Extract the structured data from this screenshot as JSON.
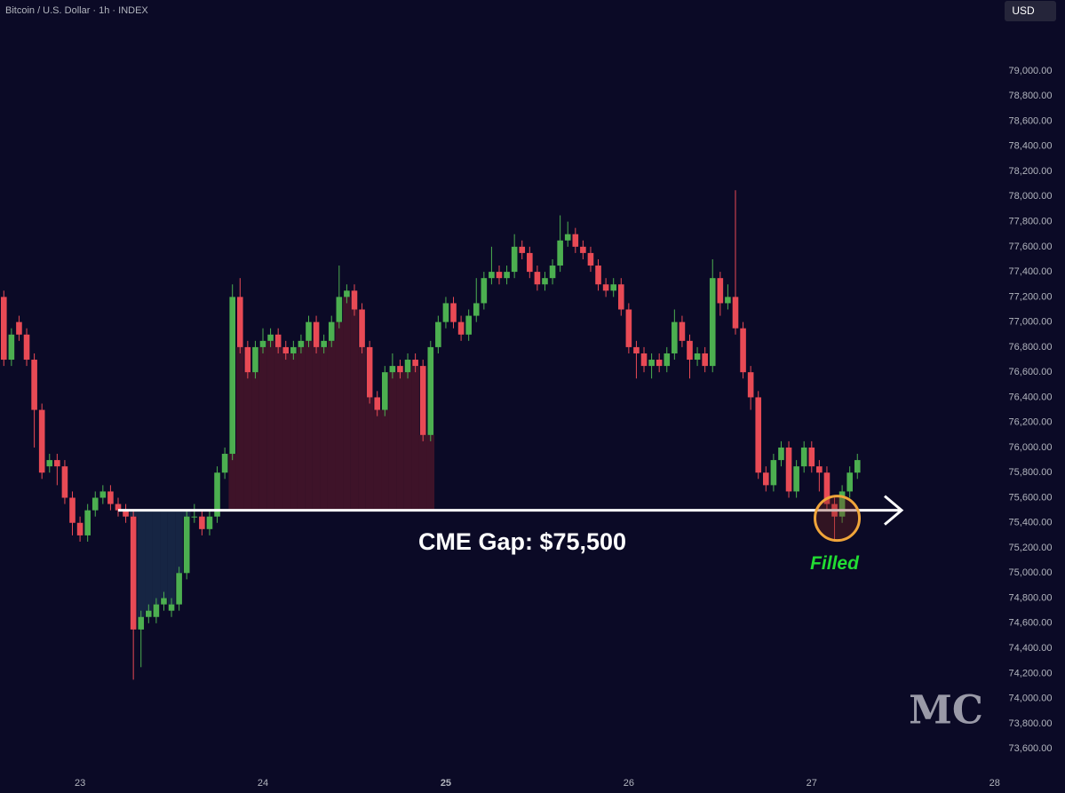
{
  "chart_data": {
    "type": "candlestick",
    "title": "Bitcoin / U.S. Dollar · 1h · INDEX",
    "currency": "USD",
    "logo": "MC",
    "up_color": "#4caf50",
    "down_color": "#e84a55",
    "categories": [
      null,
      null,
      null,
      null,
      null,
      null,
      null,
      null,
      null,
      null,
      "23",
      null,
      null,
      null,
      null,
      null,
      null,
      null,
      null,
      null,
      null,
      null,
      null,
      null,
      null,
      null,
      null,
      null,
      null,
      null,
      null,
      null,
      null,
      null,
      "24",
      null,
      null,
      null,
      null,
      null,
      null,
      null,
      null,
      null,
      null,
      null,
      null,
      null,
      null,
      null,
      null,
      null,
      null,
      null,
      null,
      null,
      null,
      null,
      "25",
      null,
      null,
      null,
      null,
      null,
      null,
      null,
      null,
      null,
      null,
      null,
      null,
      null,
      null,
      null,
      null,
      null,
      null,
      null,
      null,
      null,
      null,
      null,
      "26",
      null,
      null,
      null,
      null,
      null,
      null,
      null,
      null,
      null,
      null,
      null,
      null,
      null,
      null,
      null,
      null,
      null,
      null,
      null,
      null,
      null,
      null,
      null,
      "27",
      null,
      null,
      null,
      null,
      null,
      null,
      null,
      null,
      null,
      null,
      null,
      null,
      null,
      null,
      null,
      null,
      null,
      null,
      null,
      null,
      null,
      null,
      null,
      "28"
    ],
    "open": [
      77200,
      76700,
      77000,
      76900,
      76700,
      76300,
      75850,
      75900,
      75850,
      75600,
      75400,
      75300,
      75500,
      75600,
      75650,
      75550,
      75500,
      75450,
      74550,
      74650,
      74650,
      74750,
      74700,
      74750,
      75000,
      75450,
      75450,
      75350,
      75450,
      75800,
      75950,
      77200,
      76800,
      76600,
      76800,
      76850,
      76900,
      76800,
      76750,
      76800,
      76850,
      77000,
      76800,
      76850,
      77000,
      77200,
      77250,
      77100,
      76800,
      76400,
      76300,
      76600,
      76650,
      76600,
      76700,
      76650,
      76100,
      76800,
      77000,
      77150,
      77000,
      76900,
      77050,
      77150,
      77350,
      77400,
      77350,
      77400,
      77600,
      77550,
      77400,
      77300,
      77350,
      77450,
      77650,
      77700,
      77600,
      77550,
      77450,
      77300,
      77250,
      77300,
      77100,
      76800,
      76750,
      76650,
      76700,
      76650,
      76750,
      77000,
      76850,
      76700,
      76750,
      76650,
      77350,
      77150,
      77200,
      76950,
      76600,
      76400,
      75800,
      75700,
      75900,
      76000,
      75650,
      75850,
      76000,
      75850,
      75800,
      75550,
      75450,
      75650,
      75800,
      null,
      null,
      null,
      null,
      null,
      null,
      null,
      null,
      null,
      null,
      null,
      null,
      null,
      null,
      null,
      null,
      null,
      null
    ],
    "high": [
      77250,
      76950,
      77050,
      76950,
      76750,
      76350,
      75950,
      75950,
      75900,
      75650,
      75450,
      75550,
      75650,
      75700,
      75700,
      75600,
      75550,
      75500,
      74700,
      74750,
      74800,
      74850,
      74800,
      75050,
      75500,
      75550,
      75500,
      75500,
      75850,
      76000,
      77300,
      77350,
      76850,
      76850,
      76950,
      76950,
      76950,
      76850,
      76850,
      76900,
      77050,
      77050,
      76900,
      77050,
      77450,
      77300,
      77300,
      77150,
      76850,
      76450,
      76650,
      76750,
      76700,
      76750,
      76750,
      76700,
      76850,
      77050,
      77200,
      77200,
      77050,
      77100,
      77350,
      77400,
      77600,
      77450,
      77450,
      77700,
      77650,
      77600,
      77450,
      77400,
      77500,
      77850,
      77800,
      77750,
      77650,
      77600,
      77500,
      77350,
      77350,
      77350,
      77150,
      76850,
      76800,
      76750,
      76750,
      76800,
      77100,
      77050,
      76900,
      76800,
      76800,
      77500,
      77400,
      77300,
      78050,
      77000,
      76650,
      76450,
      75850,
      75950,
      76050,
      76050,
      75900,
      76050,
      76050,
      75900,
      75850,
      75600,
      75700,
      75850,
      75950,
      null,
      null,
      null,
      null,
      null,
      null,
      null,
      null,
      null,
      null,
      null,
      null,
      null,
      null,
      null,
      null,
      null,
      null
    ],
    "low": [
      76650,
      76650,
      76850,
      76650,
      76000,
      75750,
      75800,
      75700,
      75550,
      75300,
      75250,
      75250,
      75450,
      75550,
      75500,
      75450,
      75400,
      74150,
      74250,
      74600,
      74600,
      74700,
      74650,
      74700,
      74950,
      75400,
      75300,
      75300,
      75400,
      75750,
      75900,
      76750,
      76550,
      76550,
      76750,
      76800,
      76750,
      76700,
      76700,
      76750,
      76800,
      76750,
      76750,
      76800,
      76950,
      77150,
      77050,
      76750,
      76350,
      76250,
      76250,
      76550,
      76550,
      76550,
      76600,
      76050,
      76050,
      76750,
      76950,
      76950,
      76850,
      76850,
      77000,
      77100,
      77300,
      77300,
      77300,
      77350,
      77500,
      77350,
      77250,
      77250,
      77300,
      77400,
      77600,
      77550,
      77500,
      77400,
      77250,
      77200,
      77200,
      77050,
      76750,
      76550,
      76600,
      76550,
      76600,
      76600,
      76700,
      76800,
      76550,
      76650,
      76600,
      76600,
      77050,
      77100,
      76900,
      76550,
      76300,
      75750,
      75650,
      75650,
      75850,
      75600,
      75600,
      75800,
      75800,
      75650,
      75500,
      75250,
      75400,
      75600,
      75750,
      null,
      null,
      null,
      null,
      null,
      null,
      null,
      null,
      null,
      null,
      null,
      null,
      null,
      null,
      null,
      null,
      null,
      null
    ],
    "close": [
      76700,
      76900,
      76900,
      76700,
      76300,
      75800,
      75900,
      75850,
      75600,
      75400,
      75300,
      75500,
      75600,
      75650,
      75550,
      75500,
      75450,
      74550,
      74650,
      74700,
      74750,
      74800,
      74750,
      75000,
      75450,
      75450,
      75350,
      75450,
      75800,
      75950,
      77200,
      76800,
      76600,
      76800,
      76850,
      76900,
      76800,
      76750,
      76800,
      76850,
      77000,
      76800,
      76850,
      77000,
      77200,
      77250,
      77100,
      76800,
      76400,
      76300,
      76600,
      76650,
      76600,
      76700,
      76650,
      76100,
      76800,
      77000,
      77150,
      77000,
      76900,
      77050,
      77150,
      77350,
      77400,
      77350,
      77400,
      77600,
      77550,
      77400,
      77300,
      77350,
      77450,
      77650,
      77700,
      77600,
      77550,
      77450,
      77300,
      77250,
      77300,
      77100,
      76800,
      76750,
      76650,
      76700,
      76650,
      76750,
      77000,
      76850,
      76700,
      76750,
      76650,
      77350,
      77150,
      77200,
      76950,
      76600,
      76400,
      75800,
      75700,
      75900,
      76000,
      75650,
      75850,
      76000,
      75850,
      75800,
      75550,
      75450,
      75650,
      75800,
      75900,
      null,
      null,
      null,
      null,
      null,
      null,
      null,
      null,
      null,
      null,
      null,
      null,
      null,
      null,
      null,
      null,
      null,
      null
    ],
    "ylim": [
      73410,
      79566
    ],
    "yticks": [
      {
        "value": 73600,
        "label": "73,600.00"
      },
      {
        "value": 73800,
        "label": "73,800.00"
      },
      {
        "value": 74000,
        "label": "74,000.00"
      },
      {
        "value": 74200,
        "label": "74,200.00"
      },
      {
        "value": 74400,
        "label": "74,400.00"
      },
      {
        "value": 74600,
        "label": "74,600.00"
      },
      {
        "value": 74800,
        "label": "74,800.00"
      },
      {
        "value": 75000,
        "label": "75,000.00"
      },
      {
        "value": 75200,
        "label": "75,200.00"
      },
      {
        "value": 75400,
        "label": "75,400.00"
      },
      {
        "value": 75600,
        "label": "75,600.00"
      },
      {
        "value": 75800,
        "label": "75,800.00"
      },
      {
        "value": 76000,
        "label": "76,000.00"
      },
      {
        "value": 76200,
        "label": "76,200.00"
      },
      {
        "value": 76400,
        "label": "76,400.00"
      },
      {
        "value": 76600,
        "label": "76,600.00"
      },
      {
        "value": 76800,
        "label": "76,800.00"
      },
      {
        "value": 77000,
        "label": "77,000.00"
      },
      {
        "value": 77200,
        "label": "77,200.00"
      },
      {
        "value": 77400,
        "label": "77,400.00"
      },
      {
        "value": 77600,
        "label": "77,600.00"
      },
      {
        "value": 77800,
        "label": "77,800.00"
      },
      {
        "value": 78000,
        "label": "78,000.00"
      },
      {
        "value": 78200,
        "label": "78,200.00"
      },
      {
        "value": 78400,
        "label": "78,400.00"
      },
      {
        "value": 78600,
        "label": "78,600.00"
      },
      {
        "value": 78800,
        "label": "78,800.00"
      },
      {
        "value": 79000,
        "label": "79,000.00"
      }
    ],
    "grid": false,
    "gap": {
      "value": 75500,
      "label": "CME Gap: $75,500"
    },
    "filled": "Filled"
  }
}
